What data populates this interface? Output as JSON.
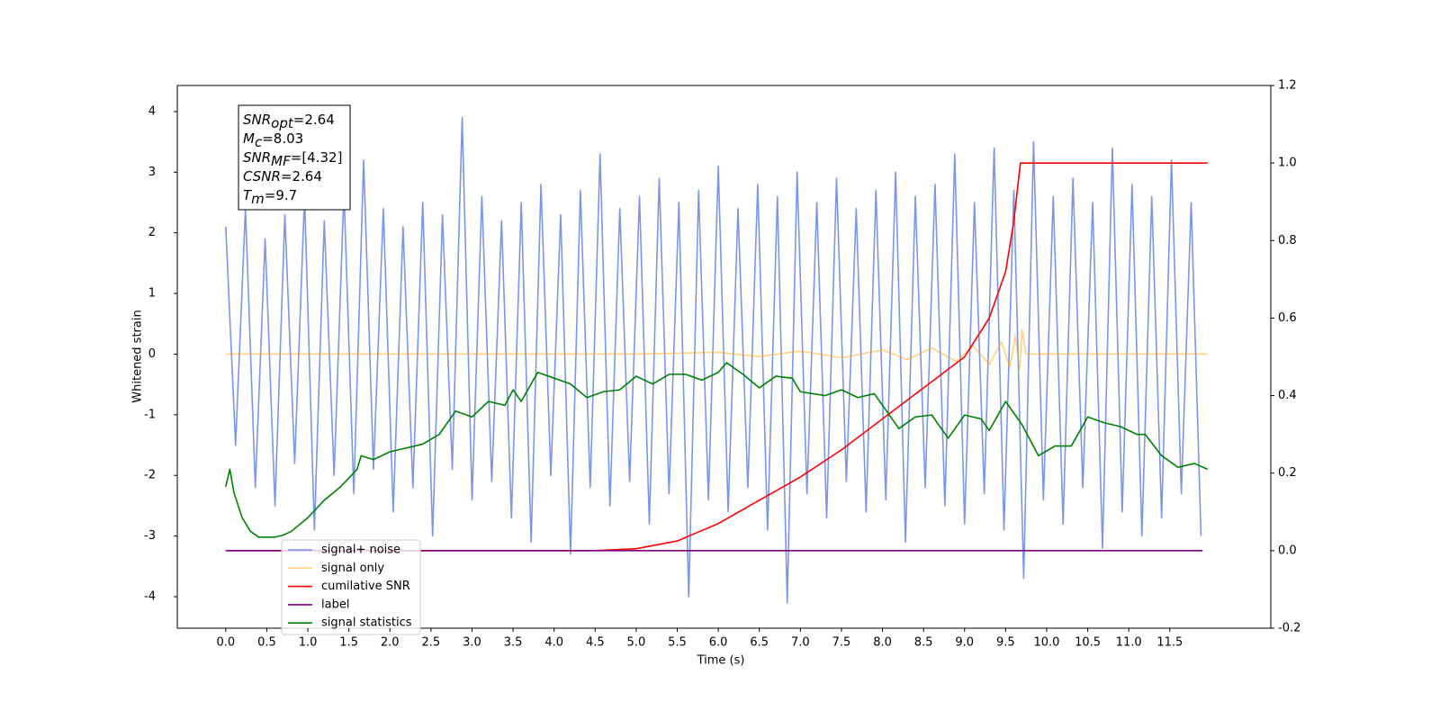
{
  "chart_data": {
    "type": "line",
    "xlabel": "Time (s)",
    "ylabel": "Whitened strain",
    "xlim": [
      -0.59,
      12.73
    ],
    "ylim": [
      -4.52,
      4.43
    ],
    "y2lim": [
      -0.2,
      1.2
    ],
    "xticks": [
      {
        "value": 0,
        "label": "0.0"
      },
      0.5,
      {
        "value": 1,
        "label": "1.0"
      },
      1.5,
      {
        "value": 2,
        "label": "2.0"
      },
      2.5,
      {
        "value": 3,
        "label": "3.0"
      },
      3.5,
      {
        "value": 4,
        "label": "4.0"
      },
      4.5,
      {
        "value": 5,
        "label": "5.0"
      },
      5.5,
      {
        "value": 6,
        "label": "6.0"
      },
      6.5,
      {
        "value": 7,
        "label": "7.0"
      },
      7.5,
      {
        "value": 8,
        "label": "8.0"
      },
      8.5,
      {
        "value": 9,
        "label": "9.0"
      },
      9.5,
      {
        "value": 10,
        "label": "10.0"
      },
      10.5,
      {
        "value": 11,
        "label": "11.0"
      },
      11.5
    ],
    "yticks": [
      -4,
      -3,
      -2,
      -1,
      0,
      1,
      2,
      3,
      4
    ],
    "y2ticks": [
      -0.2,
      {
        "value": 0,
        "label": "0.0"
      },
      0.2,
      0.4,
      0.6,
      0.8,
      {
        "value": 1,
        "label": "1.0"
      },
      1.2
    ],
    "grid": false,
    "legend": "lower left",
    "annotation": [
      {
        "text": "SNR",
        "subscript": "opt",
        "suffix": "=2.64"
      },
      {
        "text": "M",
        "subscript": "c",
        "suffix": "=8.03"
      },
      {
        "text": "SNR",
        "subscript": "MF",
        "suffix": "=[4.32]"
      },
      {
        "text": "CSNR",
        "suffix": "=2.64"
      },
      {
        "text": "T",
        "subscript": "m",
        "suffix": "=9.7"
      }
    ],
    "series": [
      {
        "name": "signal+ noise",
        "color": "royalblue",
        "alpha": 0.7,
        "axis": "y",
        "x": [
          0,
          0.12,
          0.24,
          0.36,
          0.48,
          0.6,
          0.72,
          0.84,
          0.96,
          1.08,
          1.2,
          1.32,
          1.44,
          1.56,
          1.68,
          1.8,
          1.92,
          2.04,
          2.16,
          2.28,
          2.4,
          2.52,
          2.64,
          2.76,
          2.88,
          3.0,
          3.12,
          3.24,
          3.36,
          3.48,
          3.6,
          3.72,
          3.84,
          3.96,
          4.08,
          4.2,
          4.32,
          4.44,
          4.56,
          4.68,
          4.8,
          4.92,
          5.04,
          5.16,
          5.28,
          5.4,
          5.52,
          5.64,
          5.76,
          5.88,
          6.0,
          6.12,
          6.24,
          6.36,
          6.48,
          6.6,
          6.72,
          6.84,
          6.96,
          7.08,
          7.2,
          7.32,
          7.44,
          7.56,
          7.68,
          7.8,
          7.92,
          8.04,
          8.16,
          8.28,
          8.4,
          8.52,
          8.64,
          8.76,
          8.88,
          9.0,
          9.12,
          9.24,
          9.36,
          9.48,
          9.6,
          9.72,
          9.84,
          9.96,
          10.08,
          10.2,
          10.32,
          10.44,
          10.56,
          10.68,
          10.8,
          10.92,
          11.04,
          11.16,
          11.28,
          11.4,
          11.52,
          11.64,
          11.76,
          11.88
        ],
        "values": [
          2.1,
          -1.5,
          2.4,
          -2.2,
          1.9,
          -2.5,
          2.3,
          -1.8,
          2.6,
          -2.9,
          2.2,
          -2.0,
          2.7,
          -2.3,
          3.2,
          -1.9,
          2.4,
          -2.6,
          2.1,
          -2.2,
          2.5,
          -3.0,
          2.3,
          -1.9,
          3.9,
          -2.4,
          2.6,
          -2.1,
          2.2,
          -2.7,
          2.5,
          -3.1,
          2.8,
          -2.0,
          2.3,
          -3.3,
          2.7,
          -2.2,
          3.3,
          -2.5,
          2.4,
          -2.1,
          2.6,
          -2.8,
          2.9,
          -2.3,
          2.5,
          -4.0,
          2.7,
          -2.4,
          3.1,
          -2.6,
          2.4,
          -2.2,
          2.8,
          -2.9,
          2.6,
          -4.1,
          3.0,
          -2.3,
          2.5,
          -2.7,
          2.9,
          -2.1,
          2.4,
          -2.6,
          2.7,
          -2.4,
          3.0,
          -3.1,
          2.6,
          -2.2,
          2.8,
          -2.5,
          3.3,
          -2.8,
          2.5,
          -2.3,
          3.4,
          -2.9,
          2.7,
          -3.7,
          3.5,
          -2.4,
          2.6,
          -2.8,
          2.9,
          -2.2,
          2.5,
          -3.2,
          3.4,
          -2.6,
          2.8,
          -3.0,
          2.6,
          -2.7,
          3.2,
          -2.3,
          2.5,
          -3.0
        ]
      },
      {
        "name": "signal only",
        "color": "orange",
        "alpha": 0.5,
        "axis": "y",
        "x": [
          0,
          5.0,
          6.0,
          6.5,
          7.0,
          7.5,
          8.0,
          8.3,
          8.6,
          8.9,
          9.1,
          9.3,
          9.45,
          9.55,
          9.62,
          9.67,
          9.7,
          9.75,
          11.96
        ],
        "values": [
          0,
          0,
          0.03,
          -0.04,
          0.05,
          -0.06,
          0.07,
          -0.09,
          0.1,
          -0.12,
          0.14,
          -0.17,
          0.2,
          -0.22,
          0.3,
          -0.25,
          0.4,
          0,
          0
        ]
      },
      {
        "name": "cumilative SNR",
        "color": "red",
        "alpha": 1,
        "axis": "y2",
        "x": [
          0,
          4.5,
          5.0,
          5.5,
          6.0,
          6.5,
          7.0,
          7.5,
          8.0,
          8.5,
          9.0,
          9.3,
          9.5,
          9.6,
          9.68,
          9.7,
          11.96
        ],
        "values": [
          0,
          0,
          0.005,
          0.025,
          0.07,
          0.13,
          0.19,
          0.26,
          0.34,
          0.42,
          0.5,
          0.6,
          0.72,
          0.85,
          1.0,
          1.0,
          1.0
        ]
      },
      {
        "name": "label",
        "color": "purple",
        "alpha": 1,
        "axis": "y2",
        "x": [
          0,
          11.9
        ],
        "values": [
          0,
          0
        ]
      },
      {
        "name": "signal statistics",
        "color": "green",
        "alpha": 1,
        "axis": "y2",
        "x": [
          0,
          0.05,
          0.1,
          0.2,
          0.3,
          0.4,
          0.6,
          0.7,
          0.8,
          1.0,
          1.2,
          1.4,
          1.6,
          1.65,
          1.8,
          2.0,
          2.2,
          2.4,
          2.6,
          2.8,
          3.0,
          3.2,
          3.4,
          3.5,
          3.6,
          3.8,
          4.0,
          4.2,
          4.4,
          4.6,
          4.8,
          5.0,
          5.2,
          5.4,
          5.6,
          5.8,
          6.0,
          6.1,
          6.3,
          6.5,
          6.7,
          6.9,
          7.0,
          7.3,
          7.5,
          7.7,
          7.9,
          8.0,
          8.2,
          8.4,
          8.6,
          8.8,
          9.0,
          9.2,
          9.3,
          9.5,
          9.7,
          9.9,
          10.1,
          10.3,
          10.5,
          10.7,
          10.9,
          11.1,
          11.2,
          11.4,
          11.6,
          11.8,
          11.96
        ],
        "values": [
          0.165,
          0.21,
          0.15,
          0.085,
          0.05,
          0.035,
          0.035,
          0.04,
          0.05,
          0.085,
          0.13,
          0.165,
          0.21,
          0.245,
          0.235,
          0.255,
          0.265,
          0.275,
          0.3,
          0.36,
          0.345,
          0.385,
          0.375,
          0.415,
          0.385,
          0.46,
          0.445,
          0.43,
          0.395,
          0.41,
          0.415,
          0.45,
          0.43,
          0.455,
          0.455,
          0.44,
          0.46,
          0.485,
          0.455,
          0.42,
          0.45,
          0.445,
          0.41,
          0.4,
          0.415,
          0.395,
          0.405,
          0.375,
          0.315,
          0.345,
          0.35,
          0.29,
          0.35,
          0.34,
          0.31,
          0.385,
          0.325,
          0.245,
          0.27,
          0.27,
          0.345,
          0.33,
          0.32,
          0.3,
          0.3,
          0.245,
          0.215,
          0.225,
          0.21
        ]
      }
    ]
  }
}
